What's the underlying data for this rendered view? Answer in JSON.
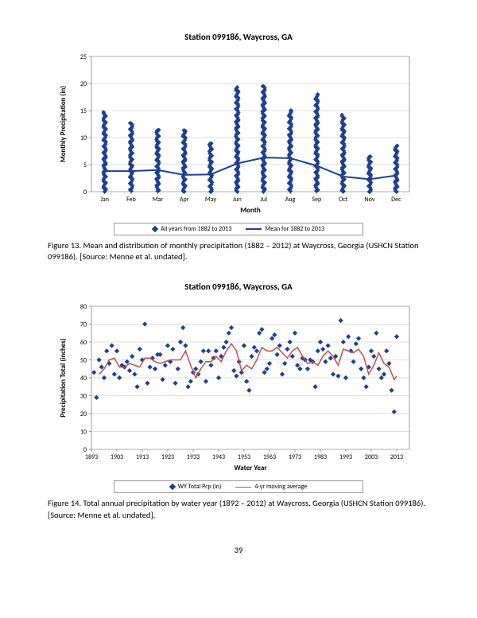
{
  "chart1": {
    "title": "Station 099186, Waycross, GA",
    "type": "scatter+line",
    "xlabel": "Month",
    "ylabel": "Monthly Precipitation (in)",
    "xcategories": [
      "Jan",
      "Feb",
      "Mar",
      "Apr",
      "May",
      "Jun",
      "Jul",
      "Aug",
      "Sep",
      "Oct",
      "Nov",
      "Dec"
    ],
    "ylim": [
      0,
      25
    ],
    "ytick_step": 5,
    "scatter_max": [
      14.7,
      12.7,
      11.5,
      11.4,
      9.0,
      19.3,
      19.5,
      15.0,
      18.0,
      14.2,
      6.5,
      8.5
    ],
    "line_mean": [
      3.8,
      3.8,
      4.0,
      3.1,
      3.2,
      5.2,
      6.3,
      6.2,
      4.8,
      2.8,
      2.3,
      3.0
    ],
    "marker_color": "#1f3f8f",
    "line_color": "#1f3f8f",
    "line_width": 2,
    "grid_color": "#bfbfbf",
    "background_color": "#ffffff",
    "axis_color": "#808080",
    "label_fontsize": 8,
    "title_fontsize": 11,
    "legend": {
      "items": [
        {
          "marker": "diamond",
          "label": "All years from 1882 to 2013"
        },
        {
          "marker": "line",
          "label": "Mean for 1882 to 2013"
        }
      ]
    }
  },
  "caption1": "Figure 13. Mean and distribution of monthly precipitation (1882 – 2012) at Waycross, Georgia (USHCN Station 099186). [Source: Menne et al. undated].",
  "chart2": {
    "title": "Station 099186, Waycross, GA",
    "type": "scatter+line",
    "xlabel": "Water Year",
    "ylabel": "Precipitation Total (inches)",
    "xlim": [
      1893,
      2018
    ],
    "xtick_step": 10,
    "ylim": [
      0,
      80
    ],
    "ytick_step": 10,
    "marker_color": "#1f3f8f",
    "line_color": "#c0504d",
    "line_width": 1.5,
    "grid_color": "#bfbfbf",
    "background_color": "#ffffff",
    "axis_color": "#808080",
    "label_fontsize": 8,
    "title_fontsize": 11,
    "data": [
      [
        1894,
        43
      ],
      [
        1895,
        29
      ],
      [
        1896,
        50
      ],
      [
        1897,
        46
      ],
      [
        1898,
        40
      ],
      [
        1899,
        55
      ],
      [
        1900,
        48
      ],
      [
        1901,
        58
      ],
      [
        1902,
        42
      ],
      [
        1903,
        55
      ],
      [
        1904,
        40
      ],
      [
        1905,
        47
      ],
      [
        1906,
        46
      ],
      [
        1907,
        49
      ],
      [
        1908,
        44
      ],
      [
        1909,
        52
      ],
      [
        1910,
        42
      ],
      [
        1911,
        35
      ],
      [
        1912,
        56
      ],
      [
        1913,
        50
      ],
      [
        1914,
        70
      ],
      [
        1915,
        37
      ],
      [
        1916,
        46
      ],
      [
        1917,
        51
      ],
      [
        1918,
        45
      ],
      [
        1919,
        53
      ],
      [
        1920,
        53
      ],
      [
        1921,
        39
      ],
      [
        1922,
        47
      ],
      [
        1923,
        58
      ],
      [
        1924,
        49
      ],
      [
        1925,
        56
      ],
      [
        1926,
        37
      ],
      [
        1927,
        45
      ],
      [
        1928,
        60
      ],
      [
        1929,
        68
      ],
      [
        1930,
        58
      ],
      [
        1931,
        35
      ],
      [
        1932,
        38
      ],
      [
        1933,
        43
      ],
      [
        1934,
        45
      ],
      [
        1935,
        42
      ],
      [
        1936,
        49
      ],
      [
        1937,
        55
      ],
      [
        1938,
        38
      ],
      [
        1939,
        55
      ],
      [
        1940,
        47
      ],
      [
        1941,
        51
      ],
      [
        1942,
        55
      ],
      [
        1943,
        40
      ],
      [
        1944,
        52
      ],
      [
        1945,
        57
      ],
      [
        1946,
        60
      ],
      [
        1947,
        65
      ],
      [
        1948,
        68
      ],
      [
        1949,
        44
      ],
      [
        1950,
        41
      ],
      [
        1951,
        49
      ],
      [
        1952,
        43
      ],
      [
        1953,
        58
      ],
      [
        1954,
        38
      ],
      [
        1955,
        33
      ],
      [
        1956,
        52
      ],
      [
        1957,
        57
      ],
      [
        1958,
        55
      ],
      [
        1959,
        65
      ],
      [
        1960,
        67
      ],
      [
        1961,
        43
      ],
      [
        1962,
        45
      ],
      [
        1963,
        48
      ],
      [
        1964,
        62
      ],
      [
        1965,
        64
      ],
      [
        1966,
        53
      ],
      [
        1967,
        58
      ],
      [
        1968,
        42
      ],
      [
        1969,
        48
      ],
      [
        1970,
        56
      ],
      [
        1971,
        60
      ],
      [
        1972,
        52
      ],
      [
        1973,
        65
      ],
      [
        1974,
        47
      ],
      [
        1975,
        45
      ],
      [
        1976,
        51
      ],
      [
        1977,
        50
      ],
      [
        1978,
        45
      ],
      [
        1979,
        50
      ],
      [
        1980,
        49
      ],
      [
        1981,
        35
      ],
      [
        1982,
        55
      ],
      [
        1983,
        60
      ],
      [
        1984,
        56
      ],
      [
        1985,
        49
      ],
      [
        1986,
        58
      ],
      [
        1987,
        51
      ],
      [
        1988,
        42
      ],
      [
        1989,
        52
      ],
      [
        1990,
        41
      ],
      [
        1991,
        72
      ],
      [
        1992,
        60
      ],
      [
        1993,
        40
      ],
      [
        1994,
        63
      ],
      [
        1995,
        55
      ],
      [
        1996,
        49
      ],
      [
        1997,
        59
      ],
      [
        1998,
        62
      ],
      [
        1999,
        45
      ],
      [
        2000,
        40
      ],
      [
        2001,
        35
      ],
      [
        2002,
        46
      ],
      [
        2003,
        55
      ],
      [
        2004,
        52
      ],
      [
        2005,
        65
      ],
      [
        2006,
        45
      ],
      [
        2007,
        40
      ],
      [
        2008,
        42
      ],
      [
        2009,
        55
      ],
      [
        2010,
        48
      ],
      [
        2011,
        33
      ],
      [
        2012,
        21
      ],
      [
        2013,
        63
      ]
    ],
    "moving_avg": [
      [
        1896,
        42
      ],
      [
        1898,
        45
      ],
      [
        1900,
        50
      ],
      [
        1902,
        51
      ],
      [
        1904,
        46
      ],
      [
        1906,
        46
      ],
      [
        1908,
        48
      ],
      [
        1910,
        47
      ],
      [
        1912,
        46
      ],
      [
        1914,
        51
      ],
      [
        1916,
        51
      ],
      [
        1918,
        49
      ],
      [
        1920,
        48
      ],
      [
        1922,
        49
      ],
      [
        1924,
        50
      ],
      [
        1926,
        50
      ],
      [
        1928,
        50
      ],
      [
        1930,
        55
      ],
      [
        1932,
        47
      ],
      [
        1934,
        40
      ],
      [
        1936,
        45
      ],
      [
        1938,
        49
      ],
      [
        1940,
        49
      ],
      [
        1942,
        52
      ],
      [
        1944,
        49
      ],
      [
        1946,
        55
      ],
      [
        1948,
        59
      ],
      [
        1950,
        55
      ],
      [
        1952,
        44
      ],
      [
        1954,
        47
      ],
      [
        1956,
        45
      ],
      [
        1958,
        50
      ],
      [
        1960,
        57
      ],
      [
        1962,
        55
      ],
      [
        1964,
        55
      ],
      [
        1966,
        57
      ],
      [
        1968,
        54
      ],
      [
        1970,
        51
      ],
      [
        1972,
        55
      ],
      [
        1974,
        57
      ],
      [
        1976,
        52
      ],
      [
        1978,
        48
      ],
      [
        1980,
        49
      ],
      [
        1982,
        47
      ],
      [
        1984,
        52
      ],
      [
        1986,
        55
      ],
      [
        1988,
        52
      ],
      [
        1990,
        47
      ],
      [
        1992,
        56
      ],
      [
        1994,
        55
      ],
      [
        1996,
        54
      ],
      [
        1998,
        56
      ],
      [
        2000,
        52
      ],
      [
        2002,
        42
      ],
      [
        2004,
        47
      ],
      [
        2006,
        54
      ],
      [
        2008,
        48
      ],
      [
        2010,
        46
      ],
      [
        2012,
        39
      ],
      [
        2013,
        41
      ]
    ],
    "legend": {
      "items": [
        {
          "marker": "diamond",
          "label": "WY Total Pcp (in)"
        },
        {
          "marker": "line",
          "label": "4-yr moving average"
        }
      ]
    }
  },
  "caption2": "Figure 14. Total annual precipitation by water year (1892 – 2012) at Waycross, Georgia (USHCN Station 099186). [Source: Menne et al. undated].",
  "page_number": "39"
}
